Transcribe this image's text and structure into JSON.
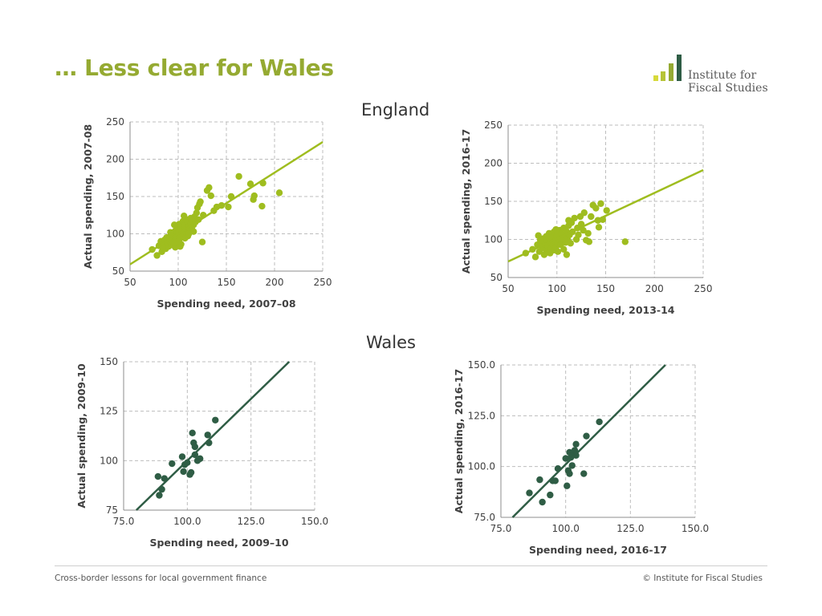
{
  "slide": {
    "title": "… Less clear for Wales",
    "logo_line1": "Institute for",
    "logo_line2": "Fiscal Studies",
    "england_heading": "England",
    "wales_heading": "Wales",
    "footer_left": "Cross-border lessons for local government finance",
    "footer_right": "© Institute for Fiscal Studies"
  },
  "colors": {
    "title": "#95aa32",
    "england_points": "#9fbd1f",
    "wales_points": "#2f5d45",
    "gridline": "#bdbdbd",
    "axis": "#8c8c8c"
  },
  "icons": [
    "bar-chart-logo-icon"
  ],
  "chart_data": [
    {
      "type": "scatter",
      "region": "England",
      "xlabel": "Spending need, 2007–08",
      "ylabel": "Actual spending, 2007-08",
      "xlim": [
        50,
        250
      ],
      "ylim": [
        50,
        250
      ],
      "xticks": [
        "50",
        "100",
        "150",
        "200",
        "250"
      ],
      "yticks": [
        "50",
        "100",
        "150",
        "200",
        "250"
      ],
      "grid": true,
      "point_color": "#9fbd1f",
      "trendline": {
        "x": [
          50,
          250
        ],
        "y": [
          59,
          223
        ]
      },
      "points": [
        [
          73,
          79
        ],
        [
          78,
          71
        ],
        [
          80,
          84
        ],
        [
          82,
          90
        ],
        [
          83,
          76
        ],
        [
          85,
          86
        ],
        [
          86,
          92
        ],
        [
          87,
          80
        ],
        [
          88,
          95
        ],
        [
          89,
          88
        ],
        [
          90,
          83
        ],
        [
          91,
          96
        ],
        [
          92,
          89
        ],
        [
          93,
          100
        ],
        [
          94,
          85
        ],
        [
          94,
          93
        ],
        [
          95,
          98
        ],
        [
          96,
          90
        ],
        [
          97,
          104
        ],
        [
          97,
          82
        ],
        [
          98,
          95
        ],
        [
          99,
          108
        ],
        [
          99,
          88
        ],
        [
          100,
          101
        ],
        [
          101,
          92
        ],
        [
          101,
          113
        ],
        [
          102,
          97
        ],
        [
          103,
          110
        ],
        [
          103,
          86
        ],
        [
          104,
          105
        ],
        [
          105,
          99
        ],
        [
          105,
          117
        ],
        [
          106,
          108
        ],
        [
          107,
          94
        ],
        [
          107,
          112
        ],
        [
          108,
          102
        ],
        [
          109,
          119
        ],
        [
          109,
          107
        ],
        [
          110,
          97
        ],
        [
          110,
          115
        ],
        [
          111,
          110
        ],
        [
          112,
          104
        ],
        [
          113,
          121
        ],
        [
          113,
          113
        ],
        [
          114,
          108
        ],
        [
          115,
          118
        ],
        [
          116,
          112
        ],
        [
          117,
          123
        ],
        [
          118,
          116
        ],
        [
          119,
          128
        ],
        [
          120,
          135
        ],
        [
          121,
          119
        ],
        [
          122,
          140
        ],
        [
          123,
          143
        ],
        [
          125,
          89
        ],
        [
          126,
          125
        ],
        [
          130,
          158
        ],
        [
          132,
          162
        ],
        [
          134,
          151
        ],
        [
          137,
          131
        ],
        [
          140,
          136
        ],
        [
          145,
          138
        ],
        [
          152,
          136
        ],
        [
          155,
          150
        ],
        [
          163,
          177
        ],
        [
          175,
          167
        ],
        [
          178,
          146
        ],
        [
          179,
          151
        ],
        [
          187,
          137
        ],
        [
          188,
          168
        ],
        [
          205,
          155
        ],
        [
          84,
          82
        ],
        [
          92,
          102
        ],
        [
          96,
          112
        ],
        [
          102,
          83
        ],
        [
          106,
          124
        ],
        [
          111,
          100
        ],
        [
          116,
          103
        ],
        [
          100,
          90
        ],
        [
          95,
          88
        ]
      ]
    },
    {
      "type": "scatter",
      "region": "England",
      "xlabel": "Spending need, 2013-14",
      "ylabel": "Actual spending, 2016-17",
      "xlim": [
        50,
        250
      ],
      "ylim": [
        50,
        250
      ],
      "xticks": [
        "50",
        "100",
        "150",
        "200",
        "250"
      ],
      "yticks": [
        "50",
        "100",
        "150",
        "200",
        "250"
      ],
      "grid": true,
      "point_color": "#9fbd1f",
      "trendline": {
        "x": [
          50,
          250
        ],
        "y": [
          71,
          191
        ]
      },
      "points": [
        [
          68,
          82
        ],
        [
          75,
          87
        ],
        [
          78,
          77
        ],
        [
          80,
          93
        ],
        [
          81,
          105
        ],
        [
          82,
          84
        ],
        [
          84,
          97
        ],
        [
          85,
          89
        ],
        [
          86,
          101
        ],
        [
          87,
          80
        ],
        [
          88,
          94
        ],
        [
          89,
          86
        ],
        [
          90,
          99
        ],
        [
          91,
          91
        ],
        [
          92,
          108
        ],
        [
          92,
          83
        ],
        [
          93,
          96
        ],
        [
          94,
          88
        ],
        [
          95,
          103
        ],
        [
          96,
          93
        ],
        [
          97,
          86
        ],
        [
          97,
          110
        ],
        [
          98,
          98
        ],
        [
          99,
          90
        ],
        [
          100,
          105
        ],
        [
          101,
          95
        ],
        [
          101,
          84
        ],
        [
          102,
          100
        ],
        [
          103,
          112
        ],
        [
          104,
          93
        ],
        [
          105,
          107
        ],
        [
          106,
          98
        ],
        [
          107,
          87
        ],
        [
          107,
          115
        ],
        [
          108,
          103
        ],
        [
          109,
          96
        ],
        [
          110,
          110
        ],
        [
          110,
          80
        ],
        [
          111,
          100
        ],
        [
          112,
          118
        ],
        [
          113,
          106
        ],
        [
          114,
          95
        ],
        [
          115,
          122
        ],
        [
          116,
          110
        ],
        [
          118,
          128
        ],
        [
          120,
          100
        ],
        [
          121,
          115
        ],
        [
          122,
          106
        ],
        [
          124,
          130
        ],
        [
          125,
          120
        ],
        [
          127,
          112
        ],
        [
          128,
          135
        ],
        [
          130,
          99
        ],
        [
          132,
          108
        ],
        [
          133,
          97
        ],
        [
          135,
          130
        ],
        [
          137,
          145
        ],
        [
          140,
          141
        ],
        [
          142,
          125
        ],
        [
          143,
          116
        ],
        [
          145,
          147
        ],
        [
          147,
          126
        ],
        [
          151,
          138
        ],
        [
          170,
          97
        ],
        [
          83,
          99
        ],
        [
          89,
          104
        ],
        [
          93,
          82
        ],
        [
          99,
          113
        ],
        [
          104,
          101
        ],
        [
          112,
          125
        ]
      ]
    },
    {
      "type": "scatter",
      "region": "Wales",
      "xlabel": "Spending need, 2009–10",
      "ylabel": "Actual spending, 2009-10",
      "xlim": [
        75,
        150
      ],
      "ylim": [
        75,
        150
      ],
      "xticks": [
        "75.0",
        "100.0",
        "125.0",
        "150.0"
      ],
      "yticks": [
        "75",
        "100",
        "125",
        "150"
      ],
      "grid": true,
      "point_color": "#2f5d45",
      "trendline": {
        "x": [
          80,
          140
        ],
        "y": [
          75,
          150
        ]
      },
      "points": [
        [
          88.5,
          92
        ],
        [
          89,
          82.5
        ],
        [
          90,
          85.5
        ],
        [
          91,
          91
        ],
        [
          94,
          98.5
        ],
        [
          98,
          102
        ],
        [
          98.5,
          94.5
        ],
        [
          99,
          98
        ],
        [
          100,
          99
        ],
        [
          101,
          93
        ],
        [
          101.5,
          94
        ],
        [
          102,
          114
        ],
        [
          102.5,
          109
        ],
        [
          103,
          107
        ],
        [
          103,
          103
        ],
        [
          104,
          100
        ],
        [
          105,
          101
        ],
        [
          108,
          113
        ],
        [
          108.5,
          109
        ],
        [
          111,
          120.5
        ]
      ]
    },
    {
      "type": "scatter",
      "region": "Wales",
      "xlabel": "Spending need, 2016-17",
      "ylabel": "Actual spending, 2016-17",
      "xlim": [
        75,
        150
      ],
      "ylim": [
        75,
        150
      ],
      "xticks": [
        "75.0",
        "100.0",
        "125.0",
        "150.0"
      ],
      "yticks": [
        "75.0",
        "100.0",
        "125.0",
        "150.0"
      ],
      "grid": true,
      "point_color": "#2f5d45",
      "trendline": {
        "x": [
          79.5,
          138.5
        ],
        "y": [
          75,
          150
        ]
      },
      "points": [
        [
          86,
          87
        ],
        [
          90,
          93.5
        ],
        [
          91,
          82.5
        ],
        [
          94,
          86
        ],
        [
          95,
          93
        ],
        [
          96,
          93
        ],
        [
          97,
          99
        ],
        [
          100,
          104
        ],
        [
          100.5,
          90.5
        ],
        [
          101,
          98
        ],
        [
          101.5,
          96.5
        ],
        [
          101.5,
          107
        ],
        [
          102,
          104.5
        ],
        [
          102.5,
          100.5
        ],
        [
          103,
          106
        ],
        [
          103.5,
          108
        ],
        [
          104,
          111
        ],
        [
          104,
          105.5
        ],
        [
          107,
          96.5
        ],
        [
          108,
          115
        ],
        [
          113,
          122
        ]
      ]
    }
  ]
}
